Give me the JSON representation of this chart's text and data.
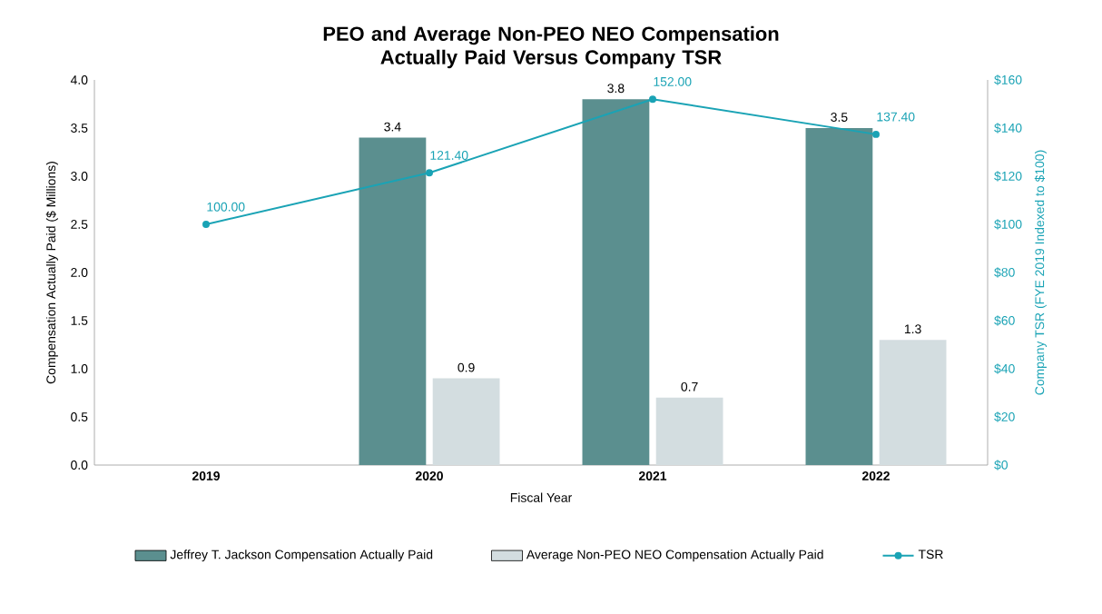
{
  "chart_data": {
    "type": "bar",
    "title": "PEO and Average Non-PEO NEO Compensation Actually Paid Versus Company TSR",
    "xlabel": "Fiscal Year",
    "ylabel": "Compensation Actually Paid ($ Millions)",
    "y2label": "Company TSR (FYE 2019 Indexed to $100)",
    "categories": [
      "2019",
      "2020",
      "2021",
      "2022"
    ],
    "series": [
      {
        "name": "Jeffrey T. Jackson Compensation Actually Paid",
        "color": "#5b8f8f",
        "values": [
          null,
          3.4,
          3.8,
          3.5
        ],
        "value_labels": [
          null,
          "3.4",
          "3.8",
          "3.5"
        ]
      },
      {
        "name": "Average Non-PEO NEO Compensation Actually Paid",
        "color": "#d3dde0",
        "values": [
          null,
          0.9,
          0.7,
          1.3
        ],
        "value_labels": [
          null,
          "0.9",
          "0.7",
          "1.3"
        ]
      },
      {
        "name": "TSR",
        "type": "line",
        "axis": "y2",
        "color": "#1aa3b5",
        "marker": "circle",
        "values": [
          100,
          121.4,
          152,
          137.4
        ],
        "value_labels": [
          "100.00",
          "121.40",
          "152.00",
          "137.40"
        ]
      }
    ],
    "ylim": [
      0,
      4
    ],
    "yticks": [
      {
        "value": 0,
        "label": "0.0"
      },
      {
        "value": 0.5,
        "label": "0.5"
      },
      {
        "value": 1,
        "label": "1.0"
      },
      {
        "value": 1.5,
        "label": "1.5"
      },
      {
        "value": 2,
        "label": "2.0"
      },
      {
        "value": 2.5,
        "label": "2.5"
      },
      {
        "value": 3,
        "label": "3.0"
      },
      {
        "value": 3.5,
        "label": "3.5"
      },
      {
        "value": 4,
        "label": "4.0"
      }
    ],
    "y2lim": [
      0,
      160
    ],
    "y2ticks": [
      {
        "value": 0,
        "label": "$0"
      },
      {
        "value": 20,
        "label": "$20"
      },
      {
        "value": 40,
        "label": "$40"
      },
      {
        "value": 60,
        "label": "$60"
      },
      {
        "value": 80,
        "label": "$80"
      },
      {
        "value": 100,
        "label": "$100"
      },
      {
        "value": 120,
        "label": "$120"
      },
      {
        "value": 140,
        "label": "$140"
      },
      {
        "value": 160,
        "label": "$160"
      }
    ],
    "legend": "bottom",
    "grid": false
  }
}
